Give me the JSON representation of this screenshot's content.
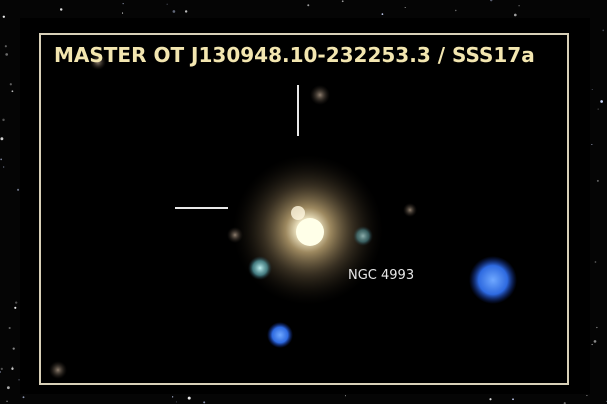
{
  "title": "MASTER OT J130948.10-232253.3 / SSS17a",
  "labels": {
    "galaxy": "NGC 4993"
  }
}
